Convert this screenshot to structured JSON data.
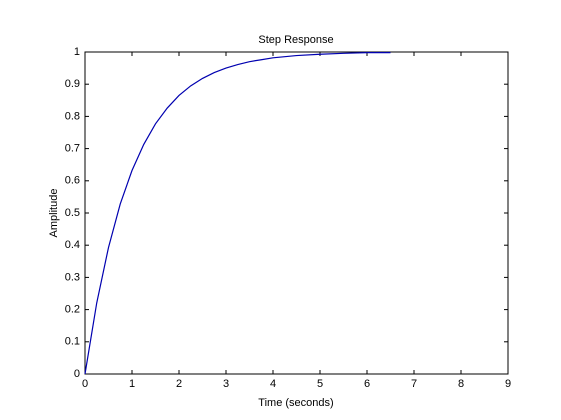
{
  "chart_data": {
    "type": "line",
    "title": "Step Response",
    "xlabel": "Time (seconds)",
    "ylabel": "Amplitude",
    "x": [
      0,
      0.25,
      0.5,
      0.75,
      1,
      1.25,
      1.5,
      1.75,
      2,
      2.25,
      2.5,
      2.75,
      3,
      3.25,
      3.5,
      3.75,
      4,
      4.5,
      5,
      5.5,
      6,
      6.5
    ],
    "series": [
      {
        "color": "#0000b0",
        "values": [
          0,
          0.221,
          0.393,
          0.528,
          0.632,
          0.713,
          0.777,
          0.826,
          0.865,
          0.895,
          0.918,
          0.936,
          0.95,
          0.961,
          0.97,
          0.976,
          0.982,
          0.989,
          0.993,
          0.996,
          0.998,
          0.998
        ]
      }
    ],
    "xlim": [
      0,
      9
    ],
    "xticks": [
      0,
      1,
      2,
      3,
      4,
      5,
      6,
      7,
      8,
      9
    ],
    "ylim": [
      0,
      1
    ],
    "yticks": [
      0,
      0.1,
      0.2,
      0.3,
      0.4,
      0.5,
      0.6,
      0.7,
      0.8,
      0.9,
      1
    ],
    "grid": false
  }
}
